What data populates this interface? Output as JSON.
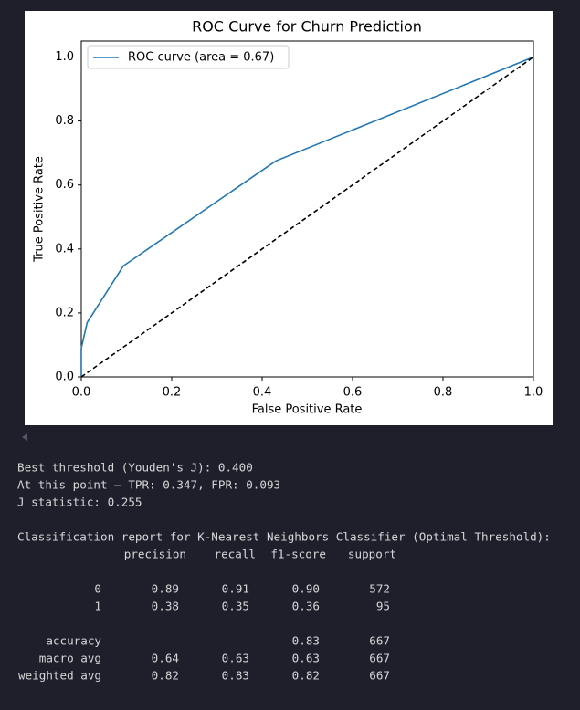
{
  "chart_data": {
    "type": "line",
    "title": "ROC Curve for Churn Prediction",
    "x_label": "False Positive Rate",
    "y_label": "True Positive Rate",
    "xlim": [
      0,
      1
    ],
    "ylim": [
      0,
      1.05
    ],
    "xticks": [
      {
        "value": 0,
        "label": "0.0"
      },
      {
        "value": 0.2,
        "label": "0.2"
      },
      {
        "value": 0.4,
        "label": "0.4"
      },
      {
        "value": 0.6,
        "label": "0.6"
      },
      {
        "value": 0.8,
        "label": "0.8"
      },
      {
        "value": 1,
        "label": "1.0"
      }
    ],
    "yticks": [
      {
        "value": 0,
        "label": "0.0"
      },
      {
        "value": 0.2,
        "label": "0.2"
      },
      {
        "value": 0.4,
        "label": "0.4"
      },
      {
        "value": 0.6,
        "label": "0.6"
      },
      {
        "value": 0.8,
        "label": "0.8"
      },
      {
        "value": 1,
        "label": "1.0"
      }
    ],
    "grid": false,
    "legend": "upper left",
    "series": [
      {
        "name": "ROC curve (area = 0.67)",
        "color": "#1f77b4",
        "x": [
          0,
          0,
          0.013,
          0.093,
          0.43,
          1
        ],
        "values": [
          0,
          0.09,
          0.17,
          0.347,
          0.675,
          1
        ]
      },
      {
        "color": "#000000",
        "dashed": true,
        "x": [
          0,
          1
        ],
        "values": [
          0,
          1
        ]
      }
    ]
  },
  "output": {
    "lines": [
      "Best threshold (Youden's J): 0.400",
      "At this point — TPR: 0.347, FPR: 0.093",
      "J statistic: 0.255"
    ],
    "report_title": "Classification report for K-Nearest Neighbors Classifier (Optimal Threshold):",
    "header": [
      "precision",
      "recall",
      "f1-score",
      "support"
    ],
    "rows": [
      [
        "0",
        "0.89",
        "0.91",
        "0.90",
        "572"
      ],
      [
        "1",
        "0.38",
        "0.35",
        "0.36",
        "95"
      ],
      [
        "accuracy",
        null,
        null,
        "0.83",
        "667"
      ],
      [
        "macro avg",
        "0.64",
        "0.63",
        "0.63",
        "667"
      ],
      [
        "weighted avg",
        "0.82",
        "0.83",
        "0.82",
        "667"
      ]
    ]
  }
}
